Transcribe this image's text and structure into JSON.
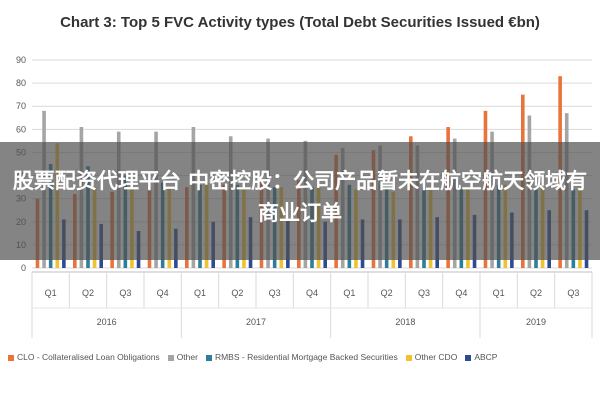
{
  "chart_data": {
    "type": "bar",
    "title": "Chart 3: Top 5 FVC Activity types (Total Debt Securities Issued €bn)",
    "categories": [
      "Q1",
      "Q2",
      "Q3",
      "Q4",
      "Q1",
      "Q2",
      "Q3",
      "Q4",
      "Q1",
      "Q2",
      "Q3",
      "Q4",
      "Q1",
      "Q2",
      "Q3"
    ],
    "years": [
      {
        "label": "2016",
        "span": 4
      },
      {
        "label": "2017",
        "span": 4
      },
      {
        "label": "2018",
        "span": 4
      },
      {
        "label": "2019",
        "span": 3
      }
    ],
    "ylim": [
      0,
      90
    ],
    "yticks": [
      0,
      10,
      20,
      30,
      40,
      50,
      60,
      70,
      80,
      90
    ],
    "grid": true,
    "legend_position": "bottom",
    "series": [
      {
        "name": "CLO - Collateralised Loan Obligations",
        "color": "#e8743b",
        "values": [
          30,
          32,
          33,
          34,
          35,
          36,
          37,
          38,
          49,
          51,
          57,
          61,
          68,
          75,
          83
        ]
      },
      {
        "name": "Other",
        "color": "#a5a5a5",
        "values": [
          68,
          61,
          59,
          59,
          61,
          57,
          56,
          55,
          52,
          53,
          53,
          56,
          59,
          66,
          67
        ]
      },
      {
        "name": "RMBS - Residential Mortgage Backed Securities",
        "color": "#2f7d9c",
        "values": [
          45,
          44,
          40,
          37,
          36,
          36,
          35,
          35,
          36,
          35,
          35,
          34,
          36,
          34,
          34
        ]
      },
      {
        "name": "Other CDO",
        "color": "#f0c232",
        "values": [
          54,
          35,
          35,
          35,
          36,
          35,
          35,
          35,
          34,
          33,
          34,
          35,
          36,
          35,
          34
        ]
      },
      {
        "name": "ABCP",
        "color": "#2e4b8f",
        "values": [
          21,
          19,
          16,
          17,
          20,
          22,
          21,
          20,
          21,
          21,
          22,
          23,
          24,
          25,
          25
        ]
      }
    ]
  },
  "banner": {
    "text": "股票配资代理平台 中密控股：公司产品暂未在航空航天领域有商业订单"
  }
}
